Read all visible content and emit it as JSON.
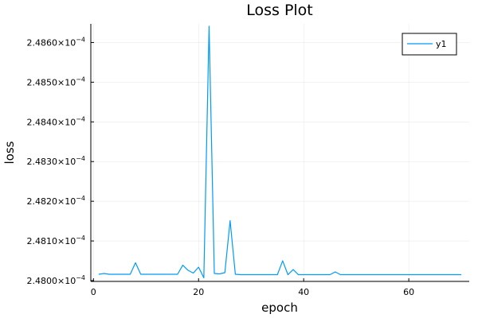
{
  "chart_data": {
    "type": "line",
    "title": "Loss Plot",
    "xlabel": "epoch",
    "ylabel": "loss",
    "xlim": [
      -0.5,
      71.5
    ],
    "ylim": [
      0.000247998,
      0.000248647
    ],
    "x_ticks": [
      {
        "value": 0,
        "label": "0"
      },
      {
        "value": 20,
        "label": "20"
      },
      {
        "value": 40,
        "label": "40"
      },
      {
        "value": 60,
        "label": "60"
      }
    ],
    "y_ticks": [
      {
        "value": 0.000248,
        "mantissa": "2.4800×10",
        "exponent": "−4"
      },
      {
        "value": 0.0002481,
        "mantissa": "2.4810×10",
        "exponent": "−4"
      },
      {
        "value": 0.0002482,
        "mantissa": "2.4820×10",
        "exponent": "−4"
      },
      {
        "value": 0.0002483,
        "mantissa": "2.4830×10",
        "exponent": "−4"
      },
      {
        "value": 0.0002484,
        "mantissa": "2.4840×10",
        "exponent": "−4"
      },
      {
        "value": 0.0002485,
        "mantissa": "2.4850×10",
        "exponent": "−4"
      },
      {
        "value": 0.0002486,
        "mantissa": "2.4860×10",
        "exponent": "−4"
      }
    ],
    "grid": true,
    "legend_position": "top-right",
    "series": [
      {
        "name": "y1",
        "color": "#009af9",
        "x": [
          1,
          2,
          3,
          4,
          5,
          6,
          7,
          8,
          9,
          10,
          11,
          12,
          13,
          14,
          15,
          16,
          17,
          18,
          19,
          20,
          21,
          22,
          23,
          24,
          25,
          26,
          27,
          28,
          29,
          30,
          31,
          32,
          33,
          34,
          35,
          36,
          37,
          38,
          39,
          40,
          41,
          42,
          43,
          44,
          45,
          46,
          47,
          48,
          49,
          50,
          51,
          52,
          53,
          54,
          55,
          56,
          57,
          58,
          59,
          60,
          61,
          62,
          63,
          64,
          65,
          66,
          67,
          68,
          69,
          70
        ],
        "y": [
          0.000248016,
          0.000248018,
          0.000248016,
          0.000248016,
          0.000248016,
          0.000248016,
          0.000248016,
          0.000248045,
          0.000248016,
          0.000248016,
          0.000248016,
          0.000248016,
          0.000248016,
          0.000248016,
          0.000248016,
          0.000248016,
          0.000248039,
          0.000248026,
          0.000248019,
          0.000248034,
          0.000248007,
          0.000248641,
          0.000248018,
          0.000248017,
          0.00024802,
          0.000248151,
          0.000248016,
          0.000248015,
          0.000248015,
          0.000248015,
          0.000248015,
          0.000248015,
          0.000248015,
          0.000248015,
          0.000248015,
          0.00024805,
          0.000248015,
          0.000248028,
          0.000248015,
          0.000248015,
          0.000248015,
          0.000248015,
          0.000248015,
          0.000248015,
          0.000248015,
          0.000248022,
          0.000248015,
          0.000248015,
          0.000248015,
          0.000248015,
          0.000248015,
          0.000248015,
          0.000248015,
          0.000248015,
          0.000248015,
          0.000248015,
          0.000248015,
          0.000248015,
          0.000248015,
          0.000248015,
          0.000248015,
          0.000248015,
          0.000248015,
          0.000248015,
          0.000248015,
          0.000248015,
          0.000248015,
          0.000248015,
          0.000248015,
          0.000248015
        ]
      }
    ]
  }
}
